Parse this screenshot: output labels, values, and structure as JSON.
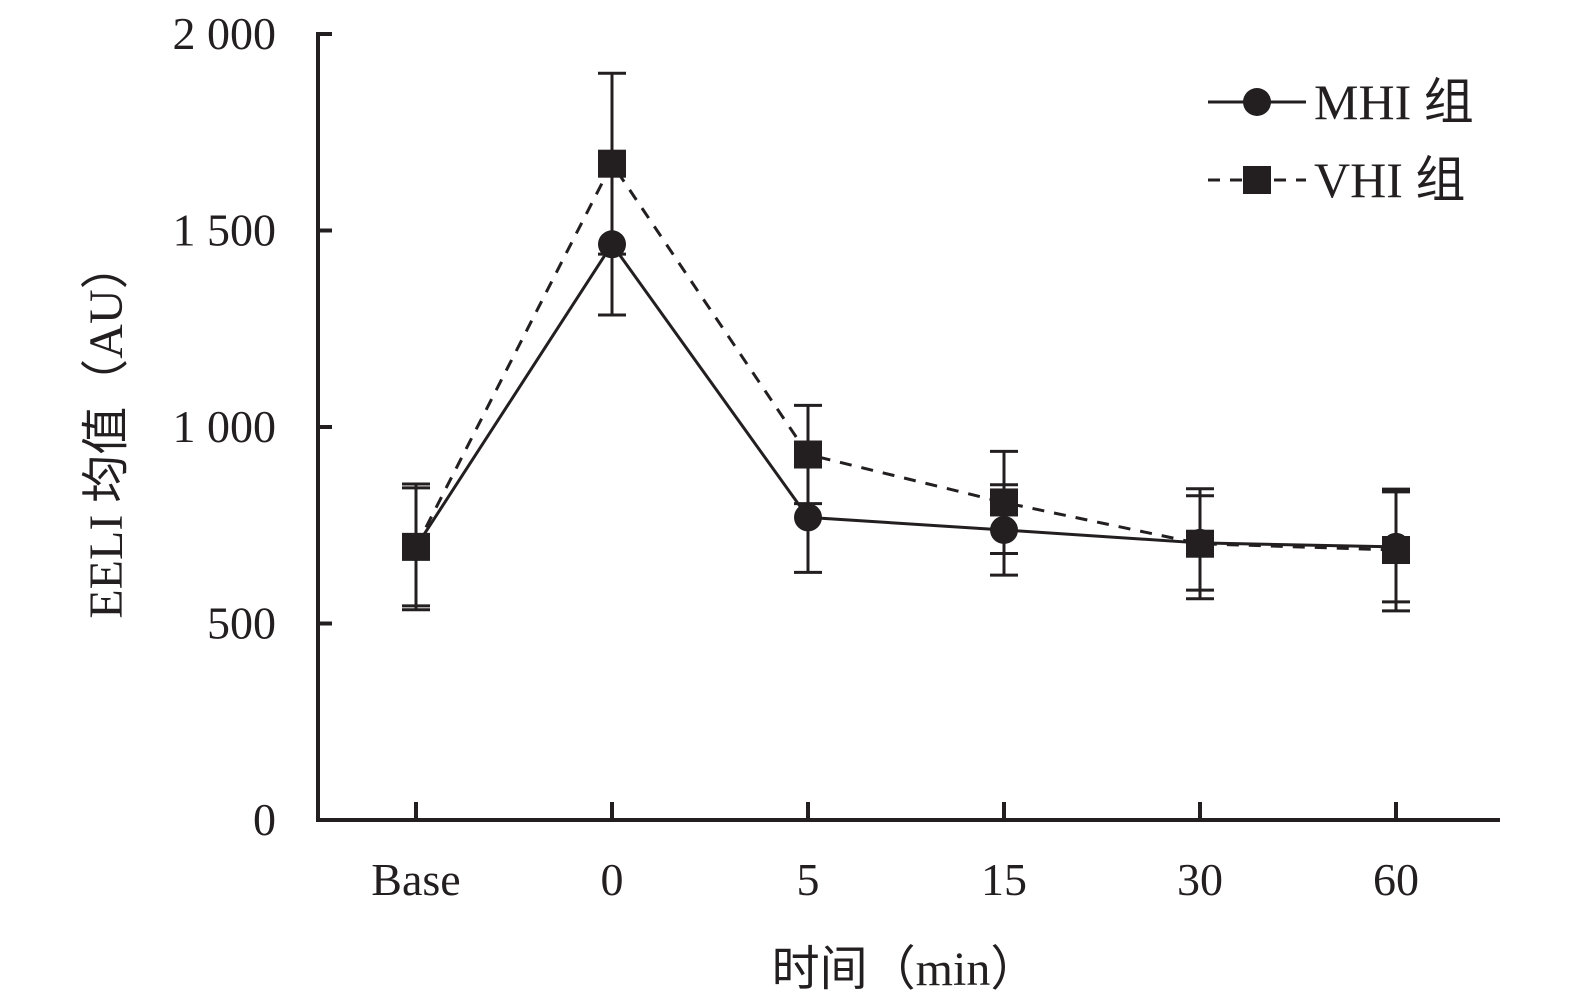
{
  "chart_data": {
    "type": "line",
    "title": "",
    "xlabel": "时间（min）",
    "ylabel": "EELI 均值（AU）",
    "categories": [
      "Base",
      "0",
      "5",
      "15",
      "30",
      "60"
    ],
    "ylim": [
      0,
      2000
    ],
    "yticks": [
      0,
      500,
      1000,
      1500,
      2000
    ],
    "ytick_labels": [
      "0",
      "500",
      "1 000",
      "1 500",
      "2 000"
    ],
    "grid": false,
    "legend_position": "top-right",
    "series": [
      {
        "name": "MHI 组",
        "marker": "circle",
        "line_style": "solid",
        "color": "#231f20",
        "values": [
          695,
          1465,
          770,
          738,
          705,
          695
        ],
        "error": [
          150,
          180,
          140,
          115,
          120,
          140
        ]
      },
      {
        "name": "VHI 组",
        "marker": "square",
        "line_style": "dashed",
        "color": "#231f20",
        "values": [
          695,
          1670,
          930,
          808,
          703,
          687
        ],
        "error": [
          160,
          230,
          125,
          130,
          140,
          155
        ]
      }
    ]
  }
}
